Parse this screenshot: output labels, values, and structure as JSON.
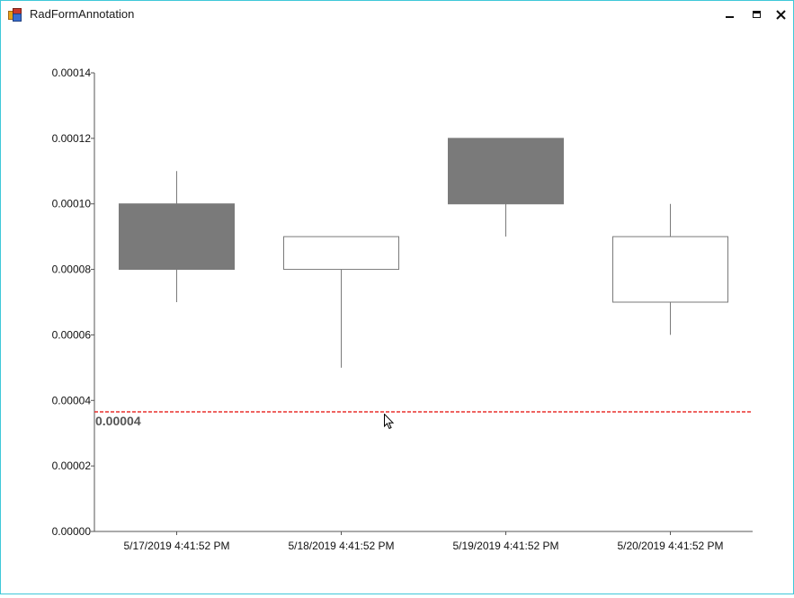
{
  "window": {
    "title": "RadFormAnnotation",
    "icons": [
      "app-icon",
      "minimize-icon",
      "maximize-icon",
      "close-icon"
    ]
  },
  "chart_data": {
    "type": "candlestick",
    "categories": [
      "5/17/2019 4:41:52 PM",
      "5/18/2019 4:41:52 PM",
      "5/19/2019 4:41:52 PM",
      "5/20/2019 4:41:52 PM"
    ],
    "series": [
      {
        "ohlc": [
          {
            "open": 0.0001,
            "high": 0.00011,
            "low": 7e-05,
            "close": 8e-05
          },
          {
            "open": 8e-05,
            "high": 9e-05,
            "low": 5e-05,
            "close": 9e-05
          },
          {
            "open": 0.00012,
            "high": 0.00012,
            "low": 9e-05,
            "close": 0.0001
          },
          {
            "open": 7e-05,
            "high": 0.0001,
            "low": 6e-05,
            "close": 9e-05
          }
        ]
      }
    ],
    "yticks": [
      "0.00000",
      "0.00002",
      "0.00004",
      "0.00006",
      "0.00008",
      "0.00010",
      "0.00012",
      "0.00014"
    ],
    "ylim": [
      0,
      0.00014
    ],
    "grid": false,
    "annotation": {
      "type": "horizontal-line",
      "value": 3.65e-05,
      "label": "0.00004",
      "color": "#e8302d",
      "style": "dashed"
    },
    "colors": {
      "decreasing_fill": "#7a7a7a",
      "increasing_fill": "#ffffff",
      "stroke": "#7a7a7a",
      "axis": "#555555"
    }
  }
}
